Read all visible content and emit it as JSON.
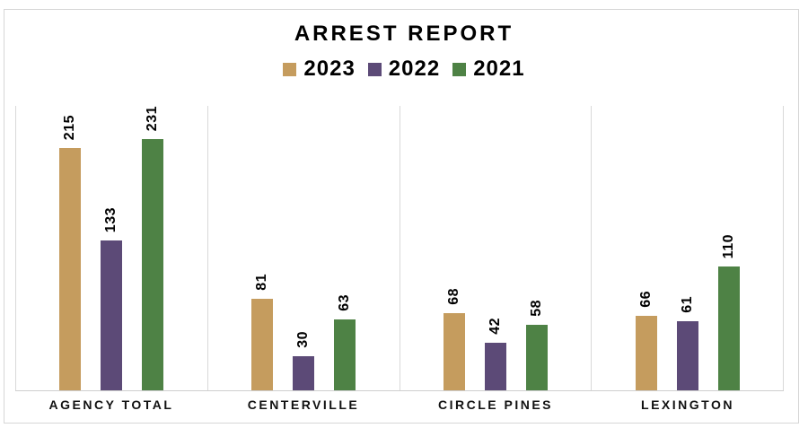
{
  "title": "ARREST REPORT",
  "colors": {
    "panel_grid": "#d9d9d9",
    "axis_line": "#cfcfcf",
    "frame_border": "#d6d6d6",
    "text": "#000000"
  },
  "chart_data": {
    "type": "bar",
    "title": "ARREST REPORT",
    "categories": [
      "AGENCY TOTAL",
      "CENTERVILLE",
      "CIRCLE PINES",
      "LEXINGTON"
    ],
    "series": [
      {
        "name": "2023",
        "color": "#C59C5E",
        "values": [
          215,
          81,
          68,
          66
        ]
      },
      {
        "name": "2022",
        "color": "#5C4A77",
        "values": [
          133,
          30,
          42,
          61
        ]
      },
      {
        "name": "2021",
        "color": "#4E8245",
        "values": [
          231,
          63,
          58,
          110
        ]
      }
    ],
    "data_labels": true,
    "data_label_rotation": -90,
    "legend_position": "top-center",
    "xlabel": "",
    "ylabel": "",
    "ylim": [
      0,
      252
    ],
    "grid": "vertical-category-separators-only"
  }
}
